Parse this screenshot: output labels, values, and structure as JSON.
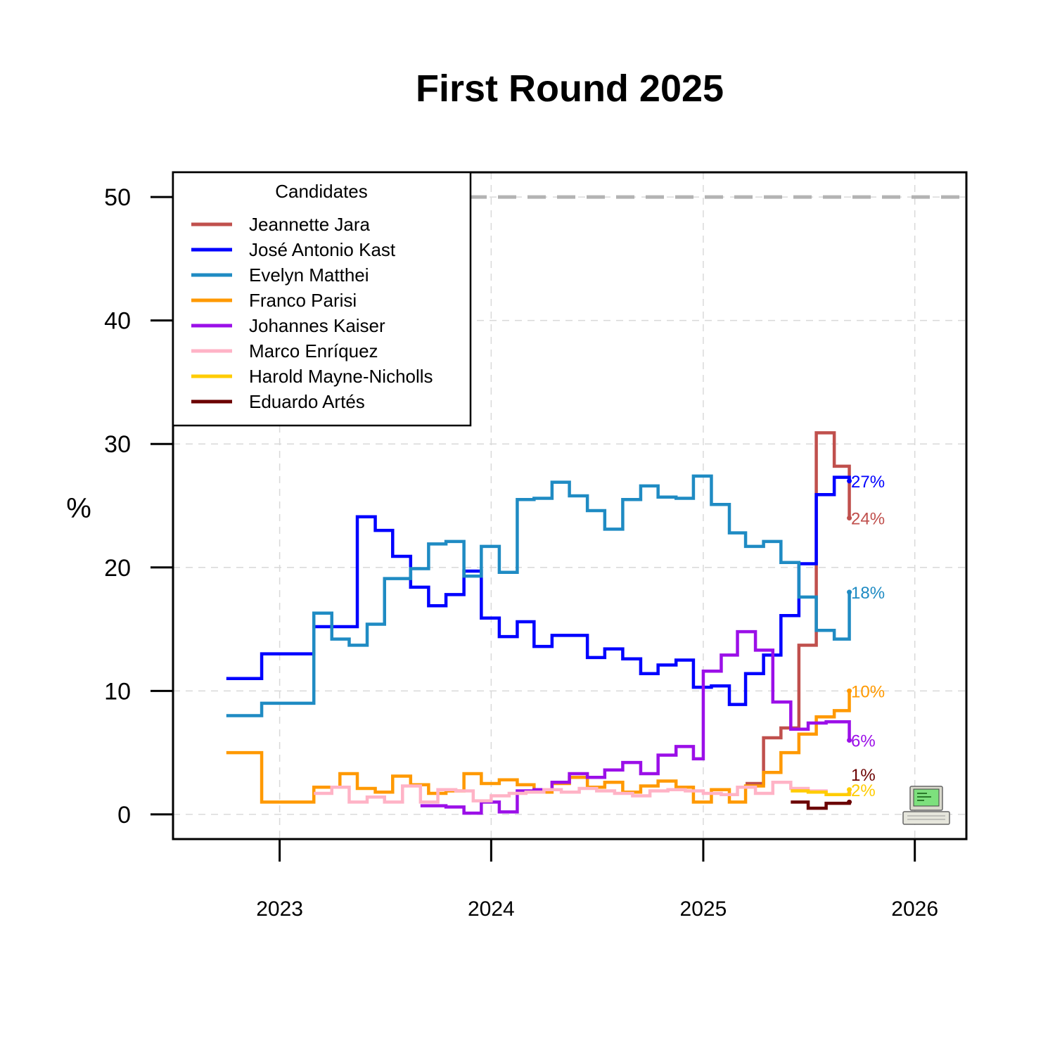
{
  "chart_data": {
    "type": "line",
    "title": "First Round 2025",
    "xlabel": "",
    "ylabel": "%",
    "xlim": [
      "2022-07-01",
      "2026-03-31"
    ],
    "ylim": [
      -2,
      52
    ],
    "y_ticks": [
      0,
      10,
      20,
      30,
      40,
      50
    ],
    "x_ticks": [
      {
        "label": "2023",
        "date": "2023-01-01"
      },
      {
        "label": "2024",
        "date": "2024-01-01"
      },
      {
        "label": "2025",
        "date": "2025-01-01"
      },
      {
        "label": "2026",
        "date": "2026-01-01"
      }
    ],
    "grid": true,
    "line_style": "step",
    "reference_line": {
      "y": 50,
      "style": "dashed",
      "color": "#b3b3b3"
    },
    "legend": {
      "title": "Candidates",
      "position": "top-left"
    },
    "series": [
      {
        "name": "Jeannette Jara",
        "color": "#c0504d",
        "end_label": "24%",
        "points": [
          [
            "2025-03-15",
            2.5
          ],
          [
            "2025-04-15",
            6.2
          ],
          [
            "2025-05-15",
            7.0
          ],
          [
            "2025-06-15",
            13.7
          ],
          [
            "2025-07-15",
            30.9
          ],
          [
            "2025-08-15",
            28.2
          ],
          [
            "2025-09-10",
            24.0
          ]
        ]
      },
      {
        "name": "José Antonio Kast",
        "color": "#0000ff",
        "end_label": "27%",
        "points": [
          [
            "2022-10-01",
            11.0
          ],
          [
            "2022-12-01",
            13.0
          ],
          [
            "2023-03-01",
            15.2
          ],
          [
            "2023-05-15",
            24.1
          ],
          [
            "2023-06-15",
            23.0
          ],
          [
            "2023-07-15",
            20.9
          ],
          [
            "2023-08-15",
            18.4
          ],
          [
            "2023-09-15",
            16.9
          ],
          [
            "2023-10-15",
            17.8
          ],
          [
            "2023-11-15",
            19.7
          ],
          [
            "2023-12-15",
            15.9
          ],
          [
            "2024-01-15",
            14.4
          ],
          [
            "2024-02-15",
            15.6
          ],
          [
            "2024-03-15",
            13.6
          ],
          [
            "2024-04-15",
            14.5
          ],
          [
            "2024-06-15",
            12.7
          ],
          [
            "2024-07-15",
            13.4
          ],
          [
            "2024-08-15",
            12.6
          ],
          [
            "2024-09-15",
            11.4
          ],
          [
            "2024-10-15",
            12.1
          ],
          [
            "2024-11-15",
            12.5
          ],
          [
            "2024-12-15",
            10.3
          ],
          [
            "2025-01-15",
            10.4
          ],
          [
            "2025-02-15",
            8.9
          ],
          [
            "2025-03-15",
            11.4
          ],
          [
            "2025-04-15",
            12.9
          ],
          [
            "2025-05-15",
            16.1
          ],
          [
            "2025-06-15",
            20.3
          ],
          [
            "2025-07-15",
            25.9
          ],
          [
            "2025-08-15",
            27.3
          ],
          [
            "2025-09-10",
            27.0
          ]
        ]
      },
      {
        "name": "Evelyn Matthei",
        "color": "#1f8bc3",
        "end_label": "18%",
        "points": [
          [
            "2022-10-01",
            8.0
          ],
          [
            "2022-12-01",
            9.0
          ],
          [
            "2023-03-01",
            16.3
          ],
          [
            "2023-04-01",
            14.2
          ],
          [
            "2023-05-01",
            13.7
          ],
          [
            "2023-06-01",
            15.4
          ],
          [
            "2023-07-01",
            19.1
          ],
          [
            "2023-08-15",
            19.9
          ],
          [
            "2023-09-15",
            21.9
          ],
          [
            "2023-10-15",
            22.1
          ],
          [
            "2023-11-15",
            19.3
          ],
          [
            "2023-12-15",
            21.7
          ],
          [
            "2024-01-15",
            19.6
          ],
          [
            "2024-02-15",
            25.5
          ],
          [
            "2024-03-15",
            25.6
          ],
          [
            "2024-04-15",
            26.9
          ],
          [
            "2024-05-15",
            25.8
          ],
          [
            "2024-06-15",
            24.6
          ],
          [
            "2024-07-15",
            23.1
          ],
          [
            "2024-08-15",
            25.5
          ],
          [
            "2024-09-15",
            26.6
          ],
          [
            "2024-10-15",
            25.7
          ],
          [
            "2024-11-15",
            25.6
          ],
          [
            "2024-12-15",
            27.4
          ],
          [
            "2025-01-15",
            25.1
          ],
          [
            "2025-02-15",
            22.8
          ],
          [
            "2025-03-15",
            21.7
          ],
          [
            "2025-04-15",
            22.1
          ],
          [
            "2025-05-15",
            20.4
          ],
          [
            "2025-06-15",
            17.6
          ],
          [
            "2025-07-15",
            14.9
          ],
          [
            "2025-08-15",
            14.2
          ],
          [
            "2025-09-10",
            18.0
          ]
        ]
      },
      {
        "name": "Franco Parisi",
        "color": "#ff9900",
        "end_label": "10%",
        "points": [
          [
            "2022-10-01",
            5.0
          ],
          [
            "2022-12-01",
            1.0
          ],
          [
            "2023-03-01",
            2.2
          ],
          [
            "2023-04-15",
            3.3
          ],
          [
            "2023-05-15",
            2.1
          ],
          [
            "2023-06-15",
            1.8
          ],
          [
            "2023-07-15",
            3.1
          ],
          [
            "2023-08-15",
            2.4
          ],
          [
            "2023-09-15",
            1.7
          ],
          [
            "2023-10-15",
            1.9
          ],
          [
            "2023-11-15",
            3.3
          ],
          [
            "2023-12-15",
            2.5
          ],
          [
            "2024-01-15",
            2.8
          ],
          [
            "2024-02-15",
            2.4
          ],
          [
            "2024-03-15",
            1.8
          ],
          [
            "2024-04-15",
            2.5
          ],
          [
            "2024-05-15",
            3.0
          ],
          [
            "2024-06-15",
            2.2
          ],
          [
            "2024-07-15",
            2.6
          ],
          [
            "2024-08-15",
            1.8
          ],
          [
            "2024-09-15",
            2.3
          ],
          [
            "2024-10-15",
            2.7
          ],
          [
            "2024-11-15",
            2.2
          ],
          [
            "2024-12-15",
            1.0
          ],
          [
            "2025-01-15",
            2.0
          ],
          [
            "2025-02-15",
            1.0
          ],
          [
            "2025-03-15",
            2.3
          ],
          [
            "2025-04-15",
            3.4
          ],
          [
            "2025-05-15",
            5.0
          ],
          [
            "2025-06-15",
            6.5
          ],
          [
            "2025-07-15",
            7.9
          ],
          [
            "2025-08-15",
            8.4
          ],
          [
            "2025-09-10",
            10.0
          ]
        ]
      },
      {
        "name": "Johannes Kaiser",
        "color": "#9b0fe8",
        "end_label": "6%",
        "points": [
          [
            "2023-09-01",
            0.7
          ],
          [
            "2023-10-15",
            0.6
          ],
          [
            "2023-11-15",
            0.1
          ],
          [
            "2023-12-15",
            1.0
          ],
          [
            "2024-01-15",
            0.2
          ],
          [
            "2024-02-15",
            1.9
          ],
          [
            "2024-03-15",
            2.0
          ],
          [
            "2024-04-15",
            2.6
          ],
          [
            "2024-05-15",
            3.3
          ],
          [
            "2024-06-15",
            3.0
          ],
          [
            "2024-07-15",
            3.6
          ],
          [
            "2024-08-15",
            4.2
          ],
          [
            "2024-09-15",
            3.3
          ],
          [
            "2024-10-15",
            4.8
          ],
          [
            "2024-11-15",
            5.5
          ],
          [
            "2024-12-15",
            4.5
          ],
          [
            "2025-01-01",
            11.6
          ],
          [
            "2025-02-01",
            12.9
          ],
          [
            "2025-03-01",
            14.8
          ],
          [
            "2025-04-01",
            13.3
          ],
          [
            "2025-05-01",
            9.1
          ],
          [
            "2025-06-01",
            6.9
          ],
          [
            "2025-07-01",
            7.4
          ],
          [
            "2025-08-01",
            7.5
          ],
          [
            "2025-09-10",
            6.0
          ]
        ]
      },
      {
        "name": "Marco Enríquez",
        "color": "#ffb3c6",
        "end_label": "",
        "points": [
          [
            "2023-03-01",
            1.7
          ],
          [
            "2023-04-01",
            2.2
          ],
          [
            "2023-05-01",
            1.0
          ],
          [
            "2023-06-01",
            1.4
          ],
          [
            "2023-07-01",
            1.0
          ],
          [
            "2023-08-01",
            2.3
          ],
          [
            "2023-09-01",
            1.0
          ],
          [
            "2023-10-01",
            2.0
          ],
          [
            "2023-11-01",
            1.9
          ],
          [
            "2023-12-01",
            1.1
          ],
          [
            "2024-01-01",
            1.5
          ],
          [
            "2024-02-01",
            1.7
          ],
          [
            "2024-03-01",
            1.8
          ],
          [
            "2024-04-01",
            2.0
          ],
          [
            "2024-05-01",
            1.8
          ],
          [
            "2024-06-01",
            2.1
          ],
          [
            "2024-07-01",
            1.9
          ],
          [
            "2024-08-01",
            1.7
          ],
          [
            "2024-09-01",
            1.5
          ],
          [
            "2024-10-01",
            1.9
          ],
          [
            "2024-11-01",
            2.0
          ],
          [
            "2024-12-01",
            1.9
          ],
          [
            "2025-01-01",
            1.7
          ],
          [
            "2025-02-01",
            1.6
          ],
          [
            "2025-03-01",
            2.2
          ],
          [
            "2025-04-01",
            1.7
          ],
          [
            "2025-05-01",
            2.6
          ],
          [
            "2025-06-01",
            2.1
          ],
          [
            "2025-07-01",
            1.9
          ],
          [
            "2025-08-01",
            1.6
          ],
          [
            "2025-09-10",
            1.7
          ]
        ]
      },
      {
        "name": "Harold Mayne-Nicholls",
        "color": "#ffcc00",
        "end_label": "2%",
        "points": [
          [
            "2025-06-01",
            1.9
          ],
          [
            "2025-07-01",
            1.8
          ],
          [
            "2025-08-01",
            1.6
          ],
          [
            "2025-09-10",
            2.0
          ]
        ]
      },
      {
        "name": "Eduardo Artés",
        "color": "#6b0000",
        "end_label": "1%",
        "points": [
          [
            "2025-06-01",
            1.0
          ],
          [
            "2025-07-01",
            0.5
          ],
          [
            "2025-08-01",
            0.9
          ],
          [
            "2025-09-10",
            1.0
          ]
        ]
      }
    ]
  },
  "icons": {
    "corner": "computer-icon"
  }
}
